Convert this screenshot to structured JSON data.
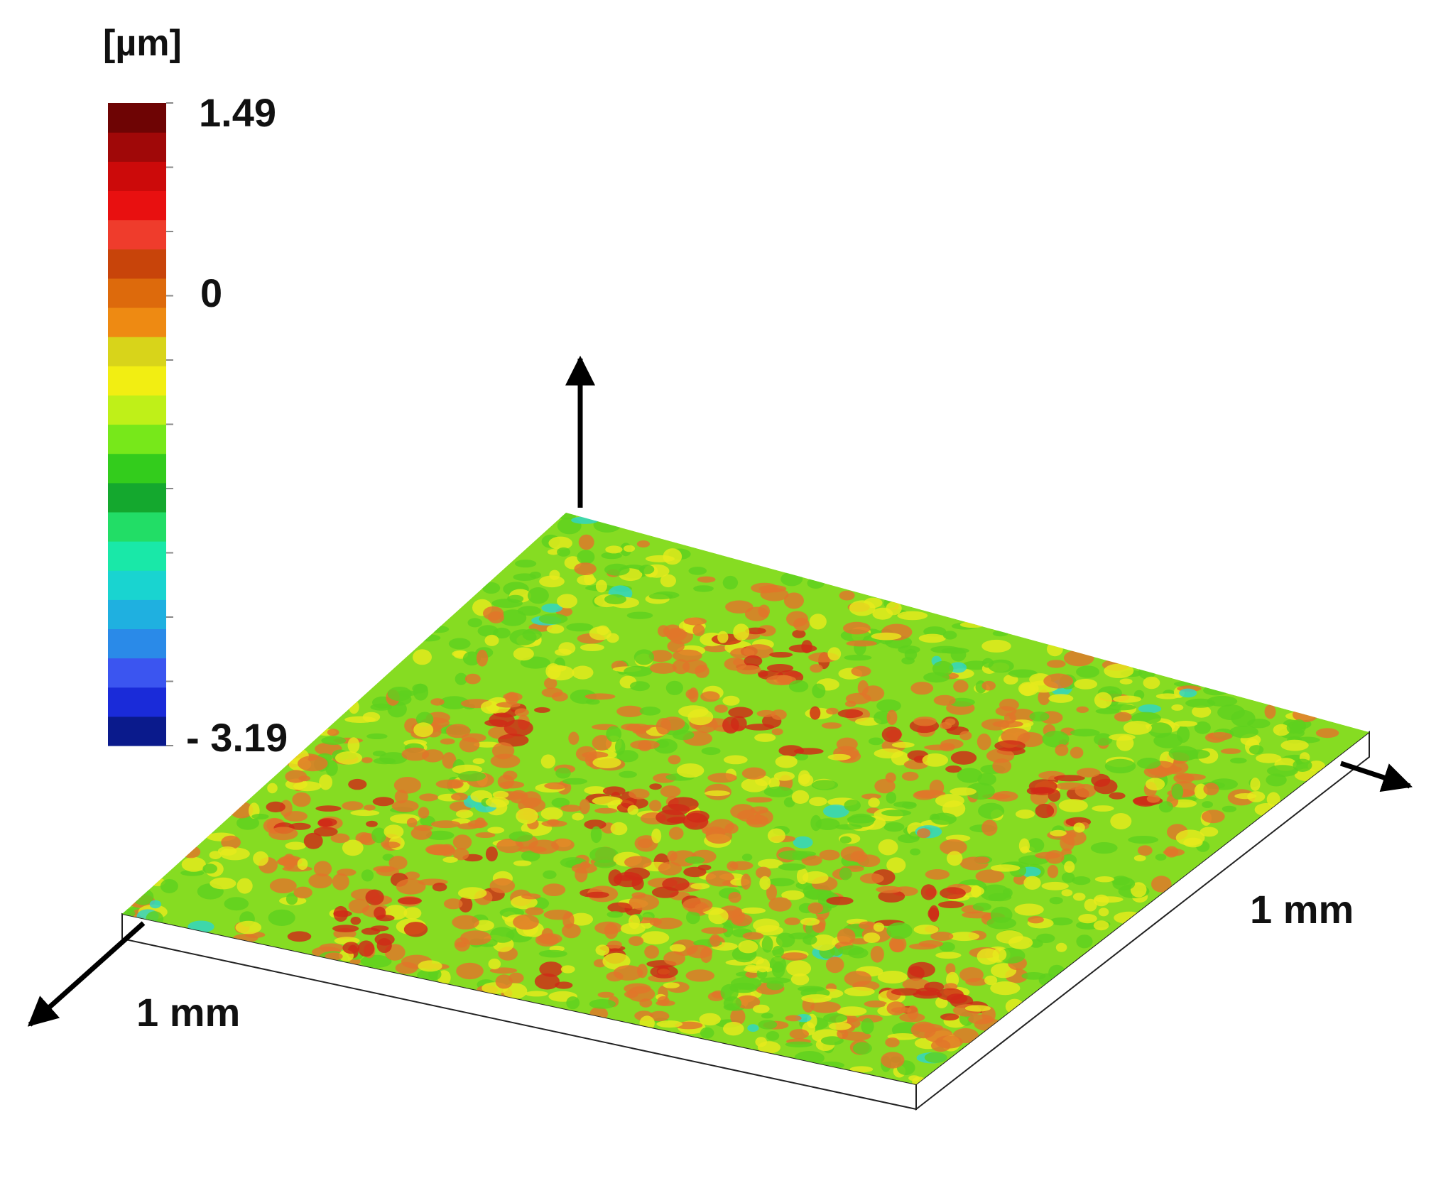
{
  "chart_data": {
    "type": "heatmap",
    "subtype": "3d-surface-topography",
    "title": "",
    "colorbar": {
      "unit_label": "[µm]",
      "max_label": "1.49",
      "mid_label": "0",
      "min_label": "- 3.19",
      "range": [
        -3.19,
        1.49
      ],
      "mid_value": 0,
      "placement": "top-left",
      "colors": [
        "#0a1a8c",
        "#1a2bd9",
        "#3b55f0",
        "#2a8ae8",
        "#1fb0e0",
        "#19d4d0",
        "#19e8a8",
        "#22dd66",
        "#14a82e",
        "#33cc1c",
        "#77e81a",
        "#bff018",
        "#f2ee12",
        "#d8d41a",
        "#ee8a12",
        "#dd6a0c",
        "#c8440a",
        "#ef3c2c",
        "#e81010",
        "#cc0a0a",
        "#a00808",
        "#6e0404"
      ]
    },
    "axes": {
      "x_label": "1 mm",
      "y_label": "1 mm",
      "x_range_mm": [
        0,
        1
      ],
      "y_range_mm": [
        0,
        1
      ]
    },
    "surface_colors": {
      "green": "#5ed11f",
      "yellow": "#e6ea1c",
      "orange": "#e2752a",
      "red": "#cf2a17",
      "cyan": "#2ed6c8"
    },
    "grid": false,
    "legend": "none"
  }
}
